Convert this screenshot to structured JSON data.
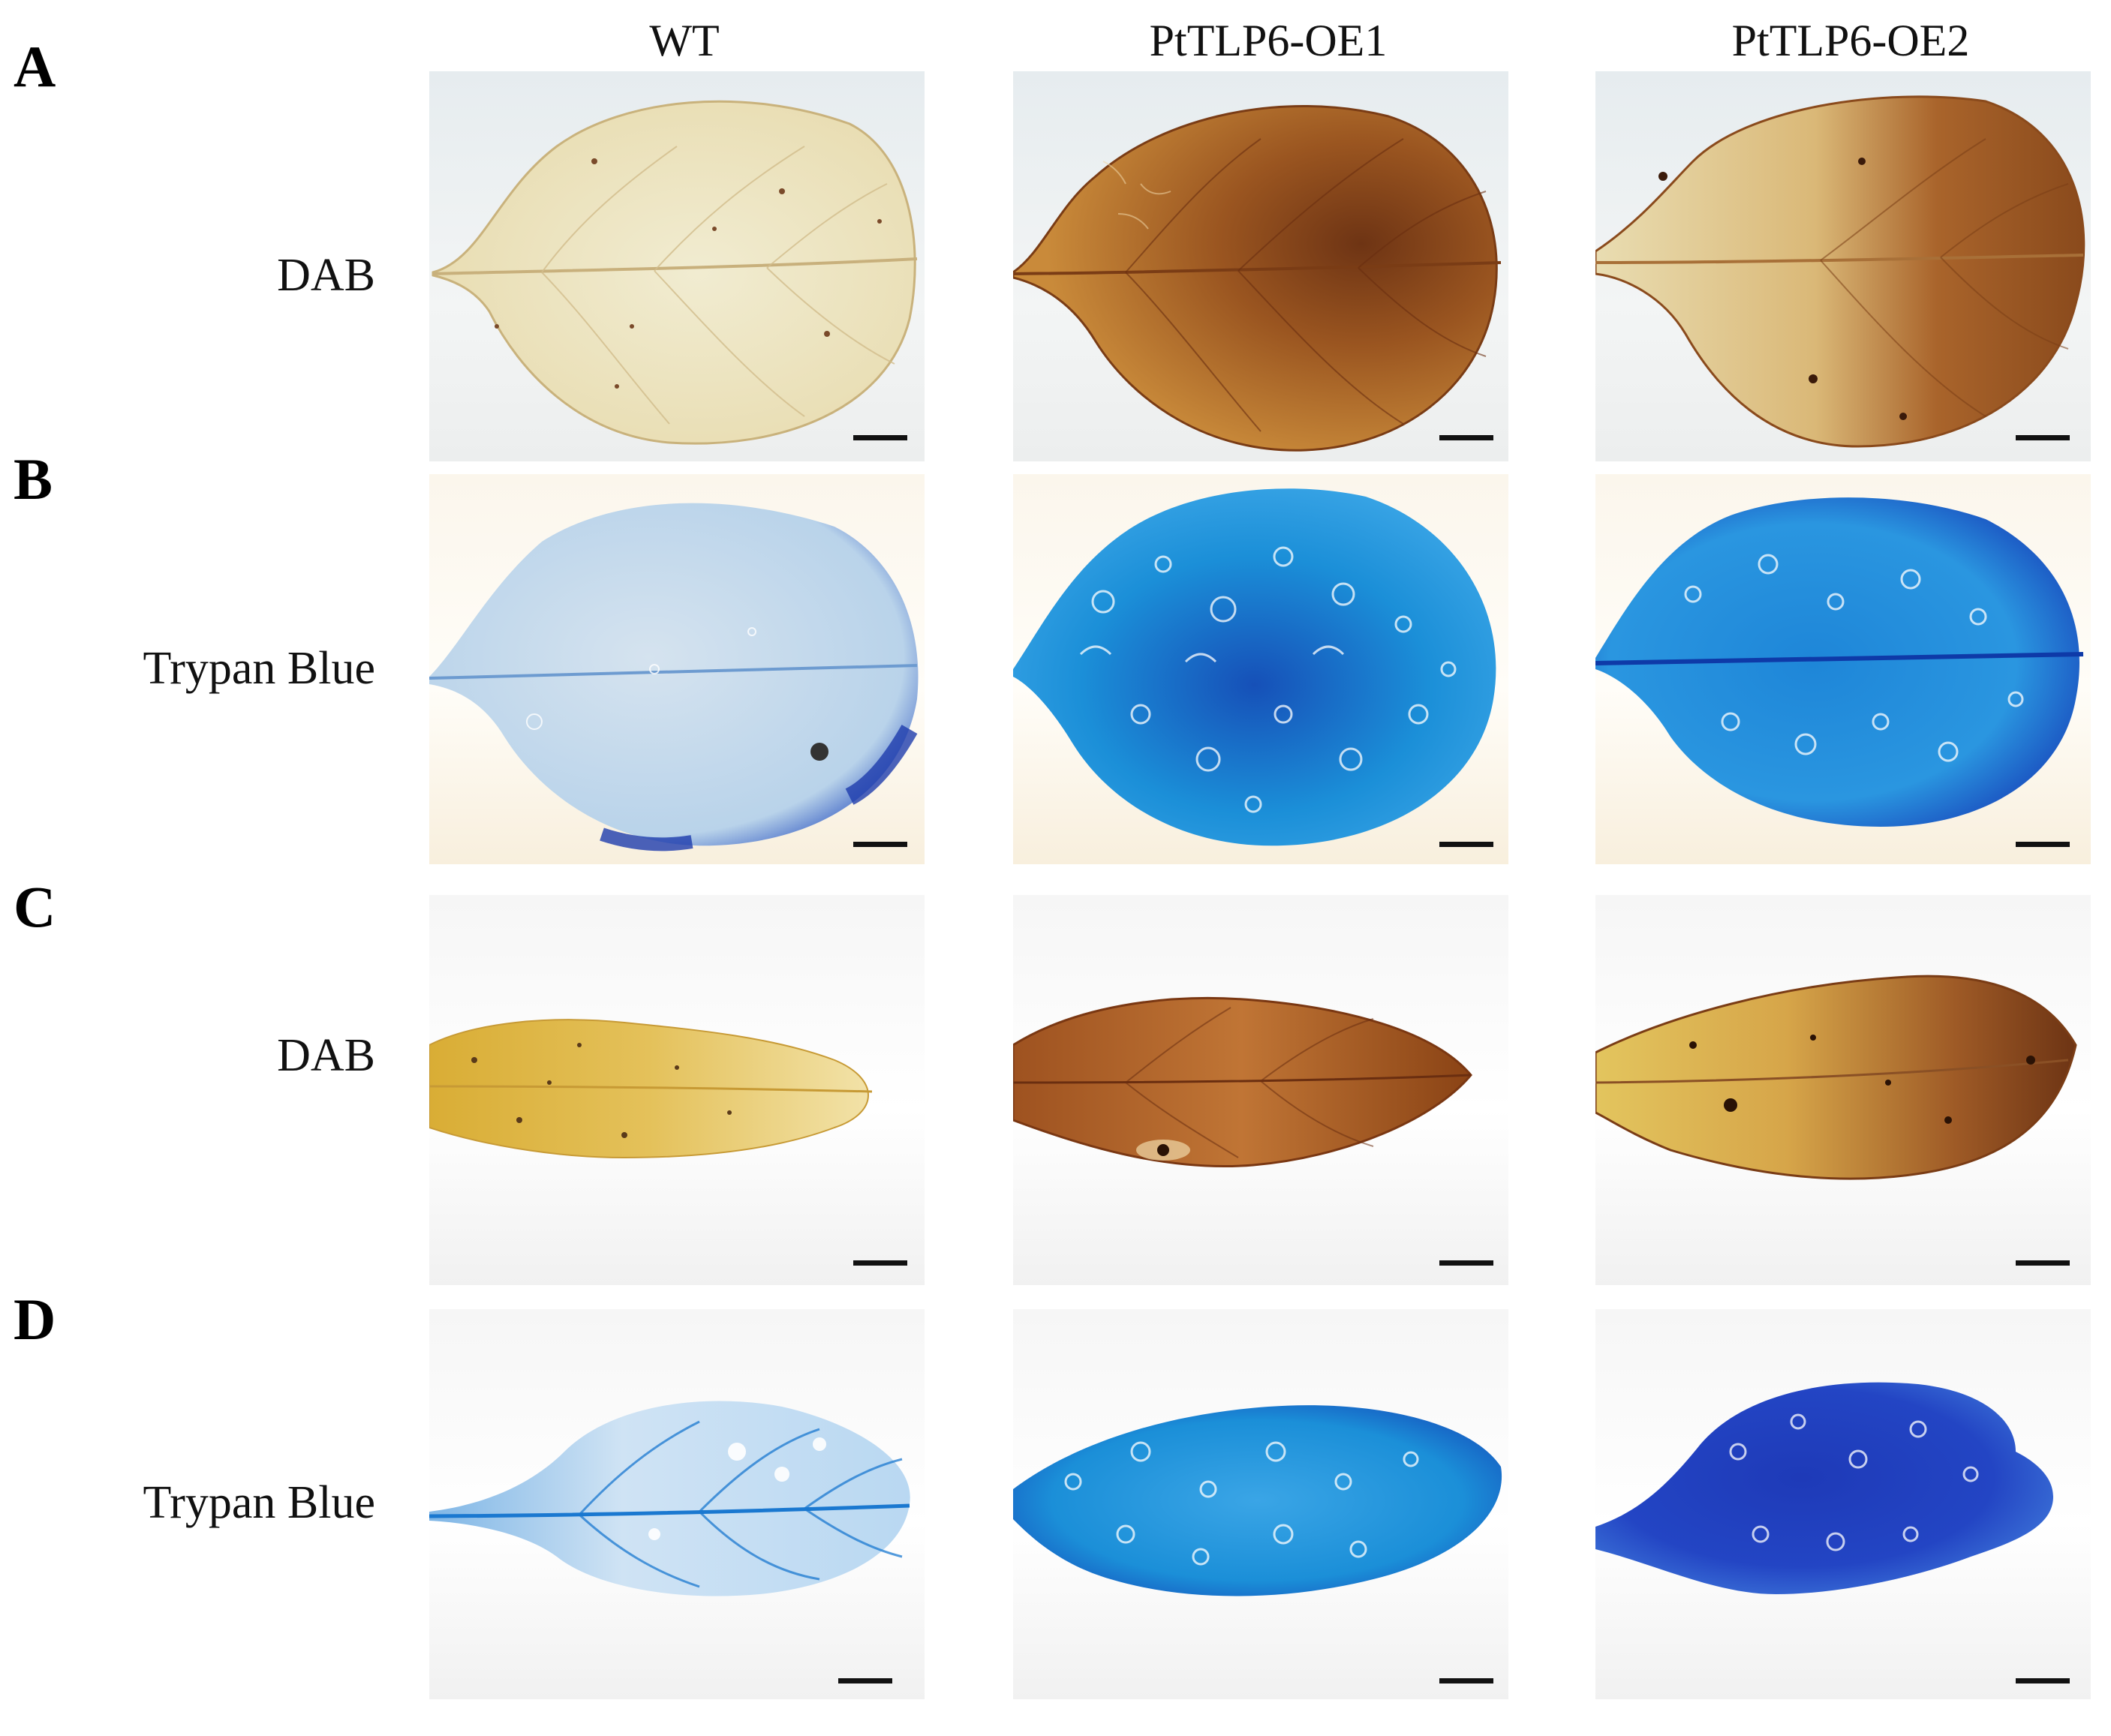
{
  "columns": [
    "WT",
    "PtTLP6-OE1",
    "PtTLP6-OE2"
  ],
  "rows": [
    {
      "letter": "A",
      "stain": "DAB"
    },
    {
      "letter": "B",
      "stain": "Trypan Blue"
    },
    {
      "letter": "C",
      "stain": "DAB"
    },
    {
      "letter": "D",
      "stain": "Trypan Blue"
    }
  ],
  "colors": {
    "dab_light": "#eee6c4",
    "dab_dark": "#8a4a17",
    "trypan_light": "#c3dcf0",
    "trypan_mid": "#1b8fd8",
    "trypan_dark": "#1431b8"
  }
}
